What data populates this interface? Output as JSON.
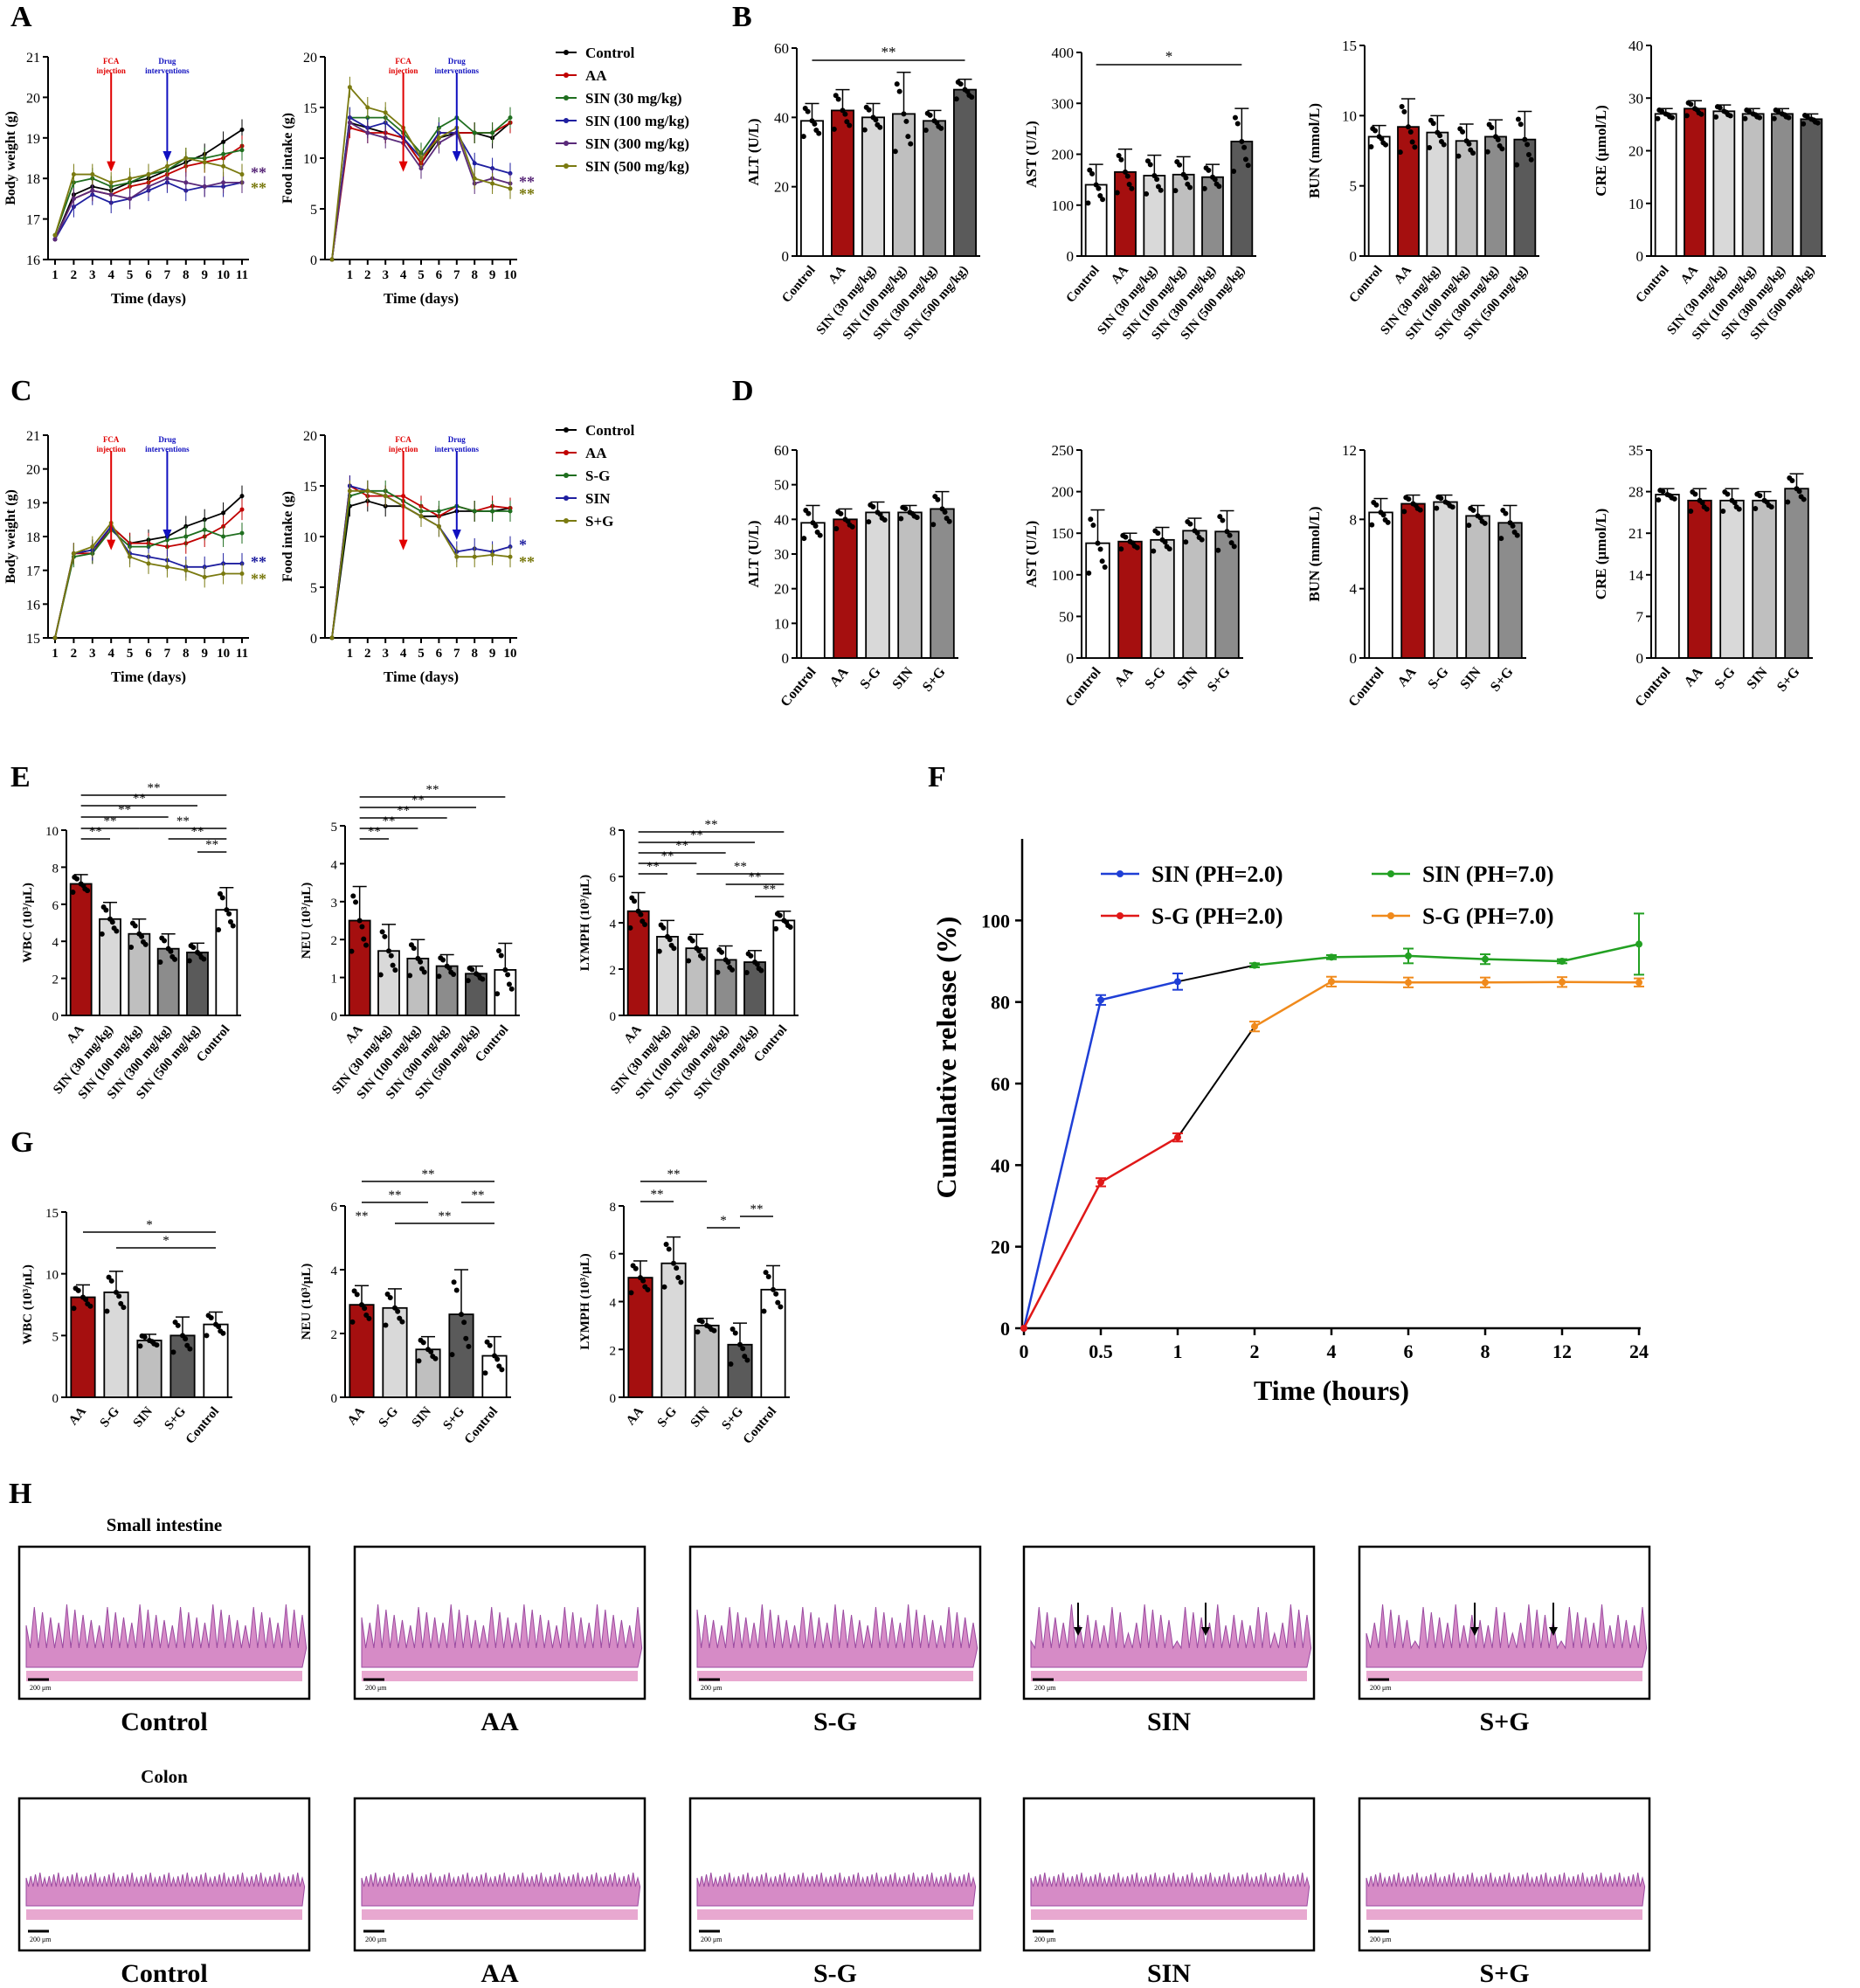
{
  "panel_letters": [
    "A",
    "B",
    "C",
    "D",
    "E",
    "F",
    "G",
    "H"
  ],
  "colors": {
    "control": "#000000",
    "aa": "#c00000",
    "green": "#1f6e1f",
    "blue": "#1f1fa0",
    "purple": "#5a2a7a",
    "olive": "#7a7a10",
    "bar_control": "#ffffff",
    "bar_aa": "#a50f0f",
    "bar_light": "#d9d9d9",
    "bar_mid": "#bfbfbf",
    "bar_dark": "#8c8c8c",
    "bar_darker": "#5a5a5a",
    "h_blue": "#1f3fd6",
    "h_green": "#22a022",
    "h_red": "#e01818",
    "h_orange": "#f08a1c",
    "tissue": "#d68bc6"
  },
  "annotations": {
    "fca": "FCA injection",
    "drug": "Drug interventions",
    "sig2": "**",
    "sig1": "*"
  },
  "chart_data": [
    {
      "id": "A1",
      "type": "line",
      "xlabel": "Time (days)",
      "ylabel": "Body weight (g)",
      "ylim": [
        16,
        21
      ],
      "x": [
        1,
        2,
        3,
        4,
        5,
        6,
        7,
        8,
        9,
        10,
        11
      ],
      "series": [
        {
          "name": "Control",
          "values": [
            16.5,
            17.6,
            17.8,
            17.7,
            17.9,
            18.0,
            18.2,
            18.4,
            18.6,
            18.9,
            19.2
          ]
        },
        {
          "name": "AA",
          "values": [
            16.5,
            17.5,
            17.7,
            17.6,
            17.8,
            17.9,
            18.1,
            18.3,
            18.4,
            18.5,
            18.8
          ]
        },
        {
          "name": "SIN (30 mg/kg)",
          "values": [
            16.6,
            17.9,
            18.0,
            17.8,
            17.9,
            18.1,
            18.2,
            18.5,
            18.5,
            18.6,
            18.7
          ]
        },
        {
          "name": "SIN (100 mg/kg)",
          "values": [
            16.5,
            17.3,
            17.6,
            17.4,
            17.5,
            17.7,
            17.9,
            17.7,
            17.8,
            17.8,
            17.9
          ]
        },
        {
          "name": "SIN (300 mg/kg)",
          "values": [
            16.5,
            17.5,
            17.7,
            17.6,
            17.5,
            17.8,
            18.0,
            17.9,
            17.8,
            17.9,
            17.9
          ]
        },
        {
          "name": "SIN (500 mg/kg)",
          "values": [
            16.6,
            18.1,
            18.1,
            17.9,
            18.0,
            18.1,
            18.3,
            18.5,
            18.4,
            18.3,
            18.1
          ]
        }
      ],
      "markers": {
        "fca_day": 4,
        "drug_day": 7
      },
      "end_labels": [
        "**",
        "**"
      ]
    },
    {
      "id": "A2",
      "type": "line",
      "xlabel": "Time (days)",
      "ylabel": "Food intake (g)",
      "ylim": [
        0,
        20
      ],
      "x": [
        0,
        1,
        2,
        3,
        4,
        5,
        6,
        7,
        8,
        9,
        10
      ],
      "series": [
        {
          "name": "Control",
          "values": [
            0,
            13.5,
            13.0,
            12.5,
            12.0,
            9.5,
            12.0,
            12.5,
            12.5,
            12.0,
            13.5
          ]
        },
        {
          "name": "AA",
          "values": [
            0,
            13.0,
            12.5,
            12.5,
            12.0,
            9.5,
            12.5,
            12.5,
            12.5,
            12.5,
            13.5
          ]
        },
        {
          "name": "SIN (30 mg/kg)",
          "values": [
            0,
            14.0,
            14.0,
            14.0,
            12.5,
            10.5,
            13.0,
            14.0,
            12.5,
            12.5,
            14.0
          ]
        },
        {
          "name": "SIN (100 mg/kg)",
          "values": [
            0,
            14.0,
            13.0,
            13.5,
            12.0,
            10.0,
            12.5,
            12.5,
            9.5,
            9.0,
            8.5
          ]
        },
        {
          "name": "SIN (300 mg/kg)",
          "values": [
            0,
            13.5,
            12.5,
            12.0,
            11.5,
            9.0,
            11.5,
            12.5,
            7.5,
            8.0,
            7.5
          ]
        },
        {
          "name": "SIN (500 mg/kg)",
          "values": [
            0,
            17.0,
            15.0,
            14.5,
            13.0,
            10.0,
            12.0,
            13.0,
            8.0,
            7.5,
            7.0
          ]
        }
      ],
      "markers": {
        "fca_day": 4,
        "drug_day": 7
      },
      "end_labels": [
        "**",
        "**"
      ]
    },
    {
      "id": "B",
      "type": "bar",
      "groups": [
        {
          "ylabel": "ALT (U/L)",
          "ylim": [
            0,
            60
          ],
          "ticks": [
            0,
            20,
            40,
            60
          ],
          "values": [
            39,
            42,
            40,
            41,
            39,
            48
          ],
          "errors": [
            5,
            6,
            4,
            12,
            3,
            3
          ],
          "sig": "**"
        },
        {
          "ylabel": "AST (U/L)",
          "ylim": [
            0,
            400
          ],
          "ticks": [
            0,
            100,
            200,
            300,
            400
          ],
          "values": [
            140,
            165,
            158,
            160,
            155,
            225
          ],
          "errors": [
            40,
            45,
            40,
            35,
            25,
            65
          ],
          "sig": "*"
        },
        {
          "ylabel": "BUN (mmol/L)",
          "ylim": [
            0,
            15
          ],
          "ticks": [
            0,
            5,
            10,
            15
          ],
          "values": [
            8.5,
            9.2,
            8.8,
            8.2,
            8.5,
            8.3
          ],
          "errors": [
            0.8,
            2.0,
            1.2,
            1.2,
            1.2,
            2.0
          ],
          "sig": ""
        },
        {
          "ylabel": "CRE (μmol/L)",
          "ylim": [
            0,
            40
          ],
          "ticks": [
            0,
            10,
            20,
            30,
            40
          ],
          "values": [
            27,
            28,
            27.5,
            27,
            27,
            26
          ],
          "errors": [
            1,
            1.5,
            1.2,
            1,
            1,
            1
          ],
          "sig": ""
        }
      ],
      "categories": [
        "Control",
        "AA",
        "SIN (30 mg/kg)",
        "SIN (100 mg/kg)",
        "SIN (300 mg/kg)",
        "SIN (500 mg/kg)"
      ]
    },
    {
      "id": "C1",
      "type": "line",
      "xlabel": "Time (days)",
      "ylabel": "Body weight (g)",
      "ylim": [
        15,
        21
      ],
      "x": [
        1,
        2,
        3,
        4,
        5,
        6,
        7,
        8,
        9,
        10,
        11
      ],
      "series": [
        {
          "name": "Control",
          "values": [
            15.0,
            17.5,
            17.6,
            18.3,
            17.8,
            17.9,
            18.0,
            18.3,
            18.5,
            18.7,
            19.2
          ]
        },
        {
          "name": "AA",
          "values": [
            15.0,
            17.5,
            17.5,
            18.3,
            17.8,
            17.8,
            17.7,
            17.8,
            18.0,
            18.3,
            18.8
          ]
        },
        {
          "name": "S-G",
          "values": [
            15.0,
            17.4,
            17.5,
            18.2,
            17.7,
            17.7,
            17.9,
            18.0,
            18.2,
            18.0,
            18.1
          ]
        },
        {
          "name": "SIN",
          "values": [
            15.0,
            17.5,
            17.6,
            18.3,
            17.5,
            17.4,
            17.3,
            17.1,
            17.1,
            17.2,
            17.2
          ]
        },
        {
          "name": "S+G",
          "values": [
            15.0,
            17.5,
            17.7,
            18.4,
            17.4,
            17.2,
            17.1,
            17.0,
            16.8,
            16.9,
            16.9
          ]
        }
      ],
      "markers": {
        "fca_day": 4,
        "drug_day": 7
      },
      "end_labels": [
        "**",
        "**"
      ]
    },
    {
      "id": "C2",
      "type": "line",
      "xlabel": "Time (days)",
      "ylabel": "Food intake (g)",
      "ylim": [
        0,
        20
      ],
      "x": [
        0,
        1,
        2,
        3,
        4,
        5,
        6,
        7,
        8,
        9,
        10
      ],
      "series": [
        {
          "name": "Control",
          "values": [
            0,
            13.0,
            13.5,
            13.0,
            13.0,
            12.0,
            12.0,
            12.5,
            12.5,
            12.5,
            12.8
          ]
        },
        {
          "name": "AA",
          "values": [
            0,
            15.0,
            14.0,
            14.0,
            14.0,
            13.0,
            12.0,
            13.0,
            12.5,
            13.0,
            12.8
          ]
        },
        {
          "name": "S-G",
          "values": [
            0,
            14.0,
            14.5,
            14.5,
            13.5,
            12.5,
            12.5,
            13.0,
            12.5,
            12.5,
            12.5
          ]
        },
        {
          "name": "SIN",
          "values": [
            0,
            15.0,
            14.5,
            14.0,
            13.0,
            12.0,
            11.0,
            8.5,
            8.8,
            8.5,
            9.0
          ]
        },
        {
          "name": "S+G",
          "values": [
            0,
            14.5,
            14.5,
            14.0,
            13.0,
            12.0,
            11.0,
            8.0,
            8.0,
            8.2,
            8.0
          ]
        }
      ],
      "markers": {
        "fca_day": 4,
        "drug_day": 7
      },
      "end_labels": [
        "*",
        "**"
      ]
    },
    {
      "id": "D",
      "type": "bar",
      "categories": [
        "Control",
        "AA",
        "S-G",
        "SIN",
        "S+G"
      ],
      "groups": [
        {
          "ylabel": "ALT (U/L)",
          "ylim": [
            0,
            60
          ],
          "ticks": [
            0,
            10,
            20,
            30,
            40,
            50,
            60
          ],
          "values": [
            39,
            40,
            42,
            42,
            43
          ],
          "errors": [
            5,
            3,
            3,
            2,
            5
          ]
        },
        {
          "ylabel": "AST (U/L)",
          "ylim": [
            0,
            250
          ],
          "ticks": [
            0,
            50,
            100,
            150,
            200,
            250
          ],
          "values": [
            138,
            140,
            142,
            153,
            152
          ],
          "errors": [
            40,
            10,
            15,
            15,
            25
          ]
        },
        {
          "ylabel": "BUN (mmol/L)",
          "ylim": [
            0,
            12
          ],
          "ticks": [
            0,
            4,
            8,
            12
          ],
          "values": [
            8.4,
            8.9,
            9.0,
            8.2,
            7.8
          ],
          "errors": [
            0.8,
            0.5,
            0.4,
            0.6,
            1.0
          ]
        },
        {
          "ylabel": "CRE (μmol/L)",
          "ylim": [
            0,
            35
          ],
          "ticks": [
            0,
            7,
            14,
            21,
            28,
            35
          ],
          "values": [
            27.5,
            26.5,
            26.5,
            26.5,
            28.5
          ],
          "errors": [
            1,
            2,
            2,
            1.5,
            2.5
          ]
        }
      ]
    },
    {
      "id": "E",
      "type": "bar",
      "categories": [
        "AA",
        "SIN (30 mg/kg)",
        "SIN (100 mg/kg)",
        "SIN (300 mg/kg)",
        "SIN (500 mg/kg)",
        "Control"
      ],
      "groups": [
        {
          "ylabel": "WBC (10³/μL)",
          "ylim": [
            0,
            10
          ],
          "ticks": [
            0,
            2,
            4,
            6,
            8,
            10
          ],
          "values": [
            7.1,
            5.2,
            4.4,
            3.6,
            3.4,
            5.7
          ],
          "errors": [
            0.5,
            0.9,
            0.8,
            0.8,
            0.5,
            1.2
          ]
        },
        {
          "ylabel": "NEU (10³/μL)",
          "ylim": [
            0,
            5
          ],
          "ticks": [
            0,
            1,
            2,
            3,
            4,
            5
          ],
          "values": [
            2.5,
            1.7,
            1.5,
            1.3,
            1.1,
            1.2
          ],
          "errors": [
            0.9,
            0.7,
            0.5,
            0.3,
            0.2,
            0.7
          ]
        },
        {
          "ylabel": "LYMPH (10³/μL)",
          "ylim": [
            0,
            8
          ],
          "ticks": [
            0,
            2,
            4,
            6,
            8
          ],
          "values": [
            4.5,
            3.4,
            2.9,
            2.4,
            2.3,
            4.1
          ],
          "errors": [
            0.8,
            0.7,
            0.6,
            0.6,
            0.5,
            0.4
          ]
        }
      ]
    },
    {
      "id": "F",
      "type": "bar",
      "categories": [
        "AA",
        "S-G",
        "SIN",
        "S+G",
        "Control"
      ],
      "groups": [
        {
          "ylabel": "WBC (10³/μL)",
          "ylim": [
            0,
            15
          ],
          "ticks": [
            0,
            5,
            10,
            15
          ],
          "values": [
            8.1,
            8.5,
            4.6,
            5.0,
            5.9
          ],
          "errors": [
            1.0,
            1.7,
            0.5,
            1.5,
            1.0
          ]
        },
        {
          "ylabel": "NEU (10³/μL)",
          "ylim": [
            0,
            6
          ],
          "ticks": [
            0,
            2,
            4,
            6
          ],
          "values": [
            2.9,
            2.8,
            1.5,
            2.6,
            1.3
          ],
          "errors": [
            0.6,
            0.6,
            0.4,
            1.4,
            0.6
          ]
        },
        {
          "ylabel": "LYMPH (10³/μL)",
          "ylim": [
            0,
            8
          ],
          "ticks": [
            0,
            2,
            4,
            6,
            8
          ],
          "values": [
            5.0,
            5.6,
            3.0,
            2.2,
            4.5
          ],
          "errors": [
            0.7,
            1.1,
            0.3,
            0.9,
            1.0
          ]
        }
      ]
    },
    {
      "id": "H",
      "type": "line",
      "xlabel": "Time (hours)",
      "ylabel": "Cumulative release (%)",
      "ylim": [
        0,
        120
      ],
      "ticks": [
        0,
        20,
        40,
        60,
        80,
        100
      ],
      "categories": [
        "0",
        "0.5",
        "1",
        "2",
        "4",
        "6",
        "8",
        "12",
        "24"
      ],
      "series": [
        {
          "name": "SIN (PH=2.0)",
          "values": [
            0,
            80.5,
            85.0,
            null,
            null,
            null,
            null,
            null,
            null
          ],
          "errors": [
            0,
            1.2,
            2.0,
            0,
            0,
            0,
            0,
            0,
            0
          ]
        },
        {
          "name": "SIN (PH=7.0)",
          "values": [
            null,
            null,
            null,
            89.0,
            91.0,
            91.3,
            90.5,
            90.0,
            94.2
          ],
          "errors": [
            0,
            0,
            0,
            0.5,
            0.5,
            1.8,
            1.2,
            0.5,
            7.5
          ]
        },
        {
          "name": "S-G (PH=2.0)",
          "values": [
            0,
            35.8,
            46.8,
            null,
            null,
            null,
            null,
            null,
            null
          ],
          "errors": [
            0,
            1.0,
            1.0,
            0,
            0,
            0,
            0,
            0,
            0
          ]
        },
        {
          "name": "S-G (PH=7.0)",
          "values": [
            null,
            null,
            null,
            74.0,
            85.0,
            84.8,
            84.8,
            84.9,
            84.8
          ],
          "errors": [
            0,
            0,
            0,
            1.2,
            1.2,
            1.2,
            1.2,
            1.2,
            1.0
          ]
        }
      ]
    }
  ],
  "histology": {
    "title_small": "Small intestine",
    "title_colon": "Colon",
    "scale": "200 μm",
    "labels": [
      "Control",
      "AA",
      "S-G",
      "SIN",
      "S+G"
    ]
  }
}
